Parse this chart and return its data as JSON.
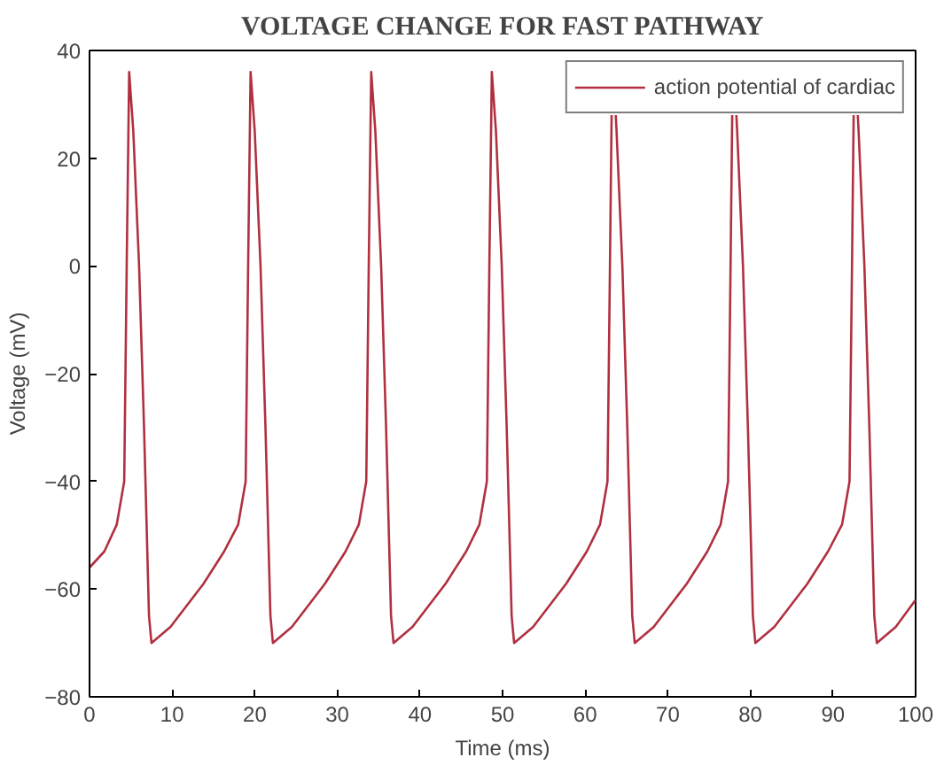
{
  "chart_data": {
    "type": "line",
    "title": "VOLTAGE CHANGE FOR FAST PATHWAY",
    "xlabel": "Time (ms)",
    "ylabel": "Voltage (mV)",
    "xlim": [
      0,
      100
    ],
    "ylim": [
      -80,
      40
    ],
    "xticks": [
      0,
      10,
      20,
      30,
      40,
      50,
      60,
      70,
      80,
      90,
      100
    ],
    "yticks": [
      -80,
      -60,
      -40,
      -20,
      0,
      20,
      40
    ],
    "grid": false,
    "legend": "top right",
    "marker": "none",
    "line_style": "solid",
    "series": [
      {
        "name": "action potential of cardiac",
        "color": "#b03040",
        "x": [
          0,
          1.8,
          3.3,
          4.2,
          4.5,
          4.8,
          5.3,
          6,
          6.6,
          7.2,
          7.5,
          9.8,
          13.8,
          16.3,
          18,
          18.9,
          19.2,
          19.5,
          20,
          20.7,
          21.3,
          21.9,
          22.2,
          24.5,
          28.5,
          31,
          32.6,
          33.5,
          33.8,
          34.1,
          34.6,
          35.3,
          35.9,
          36.5,
          36.8,
          39.1,
          43.1,
          45.6,
          47.2,
          48.1,
          48.4,
          48.7,
          49.2,
          49.9,
          50.5,
          51.1,
          51.4,
          53.7,
          57.7,
          60.2,
          61.8,
          62.7,
          63,
          63.2,
          63.3,
          63.7,
          63.8,
          64.5,
          65.1,
          65.7,
          66,
          68.3,
          72.3,
          74.8,
          76.4,
          77.3,
          77.6,
          77.8,
          77.9,
          78.3,
          78.4,
          79.1,
          79.7,
          80.3,
          80.6,
          82.9,
          86.9,
          89.4,
          91.1,
          92,
          92.3,
          92.5,
          92.6,
          93,
          93.1,
          93.8,
          94.4,
          95,
          95.3,
          97.6,
          100
        ],
        "values": [
          -56,
          -53,
          -48,
          -40,
          0,
          36,
          25,
          0,
          -30,
          -65,
          -70,
          -67,
          -59,
          -53,
          -48,
          -40,
          0,
          36,
          25,
          0,
          -30,
          -65,
          -70,
          -67,
          -59,
          -53,
          -48,
          -40,
          0,
          36,
          25,
          0,
          -30,
          -65,
          -70,
          -67,
          -59,
          -53,
          -48,
          -40,
          0,
          36,
          25,
          0,
          -30,
          -65,
          -70,
          -67,
          -59,
          -53,
          -48,
          -40,
          0,
          28,
          null,
          28,
          25,
          0,
          -30,
          -65,
          -70,
          -67,
          -59,
          -53,
          -48,
          -40,
          0,
          28,
          null,
          28,
          25,
          0,
          -30,
          -65,
          -70,
          -67,
          -59,
          -53,
          -48,
          -40,
          0,
          28,
          null,
          28,
          25,
          0,
          -30,
          -65,
          -70,
          -67,
          -62
        ]
      }
    ]
  }
}
